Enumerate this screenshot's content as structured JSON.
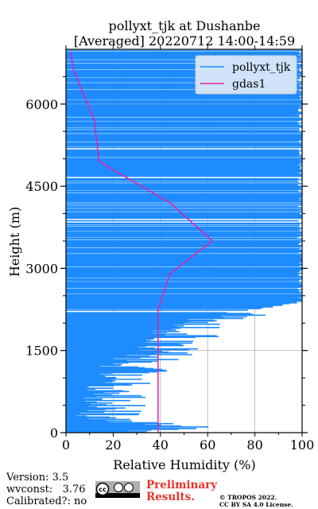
{
  "chart_data": {
    "type": "line",
    "title": "pollyxt_tjk at Dushanbe",
    "subtitle": "[Averaged] 20220712 14:00-14:59",
    "xlabel": "Relative Humidity (%)",
    "ylabel": "Height (m)",
    "xlim": [
      0,
      100
    ],
    "ylim": [
      0,
      7000
    ],
    "xticks": [
      0,
      20,
      40,
      60,
      80,
      100
    ],
    "yticks": [
      0,
      1500,
      3000,
      4500,
      6000
    ],
    "grid": true,
    "legend_position": "top-right",
    "series": [
      {
        "name": "pollyxt_tjk",
        "color": "#1e8cff",
        "style": "dense noisy profile",
        "points": [
          [
            27,
            0
          ],
          [
            55,
            75
          ],
          [
            40,
            150
          ],
          [
            20,
            250
          ],
          [
            17,
            350
          ],
          [
            20,
            450
          ],
          [
            18,
            550
          ],
          [
            21,
            650
          ],
          [
            19,
            750
          ],
          [
            23,
            850
          ],
          [
            21,
            950
          ],
          [
            25,
            1050
          ],
          [
            30,
            1150
          ],
          [
            28,
            1250
          ],
          [
            35,
            1350
          ],
          [
            40,
            1450
          ],
          [
            45,
            1550
          ],
          [
            42,
            1650
          ],
          [
            55,
            1750
          ],
          [
            48,
            1850
          ],
          [
            60,
            1950
          ],
          [
            65,
            2050
          ],
          [
            72,
            2150
          ],
          [
            80,
            2250
          ],
          [
            100,
            2400
          ],
          [
            100,
            4800
          ],
          [
            100,
            6900
          ]
        ]
      },
      {
        "name": "gdas1",
        "color": "#e81ea0",
        "points": [
          [
            39,
            0
          ],
          [
            39,
            2250
          ],
          [
            44,
            2900
          ],
          [
            62,
            3500
          ],
          [
            44,
            4200
          ],
          [
            14,
            4950
          ],
          [
            12,
            5700
          ],
          [
            3,
            6650
          ],
          [
            2,
            6950
          ]
        ]
      }
    ]
  },
  "footer": {
    "version": "Version: 3.5",
    "wvconst": "wvconst:   3.76",
    "calibrated": "Calibrated?: no",
    "preliminary": "Preliminary\nResults.",
    "copyright": "© TROPOS 2022.\nCC BY SA 4.0 License."
  }
}
